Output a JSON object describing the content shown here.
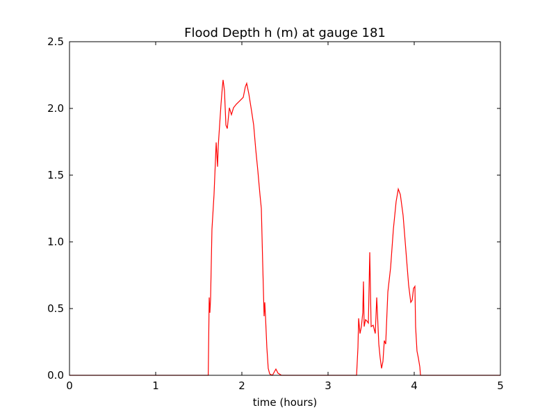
{
  "chart_data": {
    "type": "line",
    "title": "Flood Depth h (m) at gauge 181",
    "xlabel": "time (hours)",
    "xlim": [
      0,
      5
    ],
    "ylim": [
      0,
      2.5
    ],
    "xticks": [
      0,
      1,
      2,
      3,
      4,
      5
    ],
    "yticks": [
      {
        "value": 0,
        "label": "0.0"
      },
      {
        "value": 0.5,
        "label": "0.5"
      },
      {
        "value": 1,
        "label": "1.0"
      },
      {
        "value": 1.5,
        "label": "1.5"
      },
      {
        "value": 2,
        "label": "2.0"
      },
      {
        "value": 2.5,
        "label": "2.5"
      }
    ],
    "grid": false,
    "series": [
      {
        "color": "#ff0000",
        "dashed": false,
        "x": [
          0,
          1.61,
          1.621,
          1.629,
          1.637,
          1.653,
          1.677,
          1.702,
          1.718,
          1.726,
          1.742,
          1.758,
          1.774,
          1.782,
          1.798,
          1.815,
          1.831,
          1.855,
          1.879,
          1.903,
          1.935,
          1.976,
          2.016,
          2.04,
          2.056,
          2.081,
          2.113,
          2.137,
          2.161,
          2.185,
          2.21,
          2.226,
          2.242,
          2.258,
          2.266,
          2.274,
          2.29,
          2.306,
          2.323,
          2.355,
          2.395,
          2.419,
          2.46,
          3.331,
          3.347,
          3.355,
          3.371,
          3.387,
          3.403,
          3.411,
          3.419,
          3.435,
          3.452,
          3.468,
          3.484,
          3.5,
          3.524,
          3.548,
          3.565,
          3.589,
          3.605,
          3.621,
          3.637,
          3.653,
          3.669,
          3.694,
          3.726,
          3.758,
          3.79,
          3.815,
          3.839,
          3.871,
          3.903,
          3.935,
          3.96,
          3.976,
          3.992,
          4.008,
          4.016,
          4.032,
          4.048,
          4.065,
          4.073,
          5
        ],
        "values": [
          0,
          0,
          0.583,
          0.469,
          0.573,
          1.094,
          1.354,
          1.745,
          1.563,
          1.719,
          1.875,
          2.031,
          2.161,
          2.214,
          2.135,
          1.875,
          1.849,
          2.005,
          1.953,
          2.005,
          2.031,
          2.057,
          2.083,
          2.161,
          2.188,
          2.109,
          1.979,
          1.875,
          1.693,
          1.536,
          1.354,
          1.25,
          0.833,
          0.443,
          0.547,
          0.443,
          0.208,
          0.052,
          0.01,
          0,
          0.047,
          0.016,
          0,
          0,
          0.208,
          0.427,
          0.313,
          0.365,
          0.469,
          0.703,
          0.365,
          0.417,
          0.406,
          0.391,
          0.922,
          0.365,
          0.375,
          0.313,
          0.583,
          0.234,
          0.13,
          0.052,
          0.104,
          0.26,
          0.234,
          0.625,
          0.807,
          1.094,
          1.302,
          1.396,
          1.354,
          1.198,
          0.938,
          0.677,
          0.547,
          0.563,
          0.651,
          0.667,
          0.365,
          0.182,
          0.13,
          0.063,
          0,
          0
        ]
      },
      {
        "color": "#000000",
        "dashed": true,
        "x": [
          0,
          5
        ],
        "values": [
          0,
          0
        ]
      }
    ]
  }
}
